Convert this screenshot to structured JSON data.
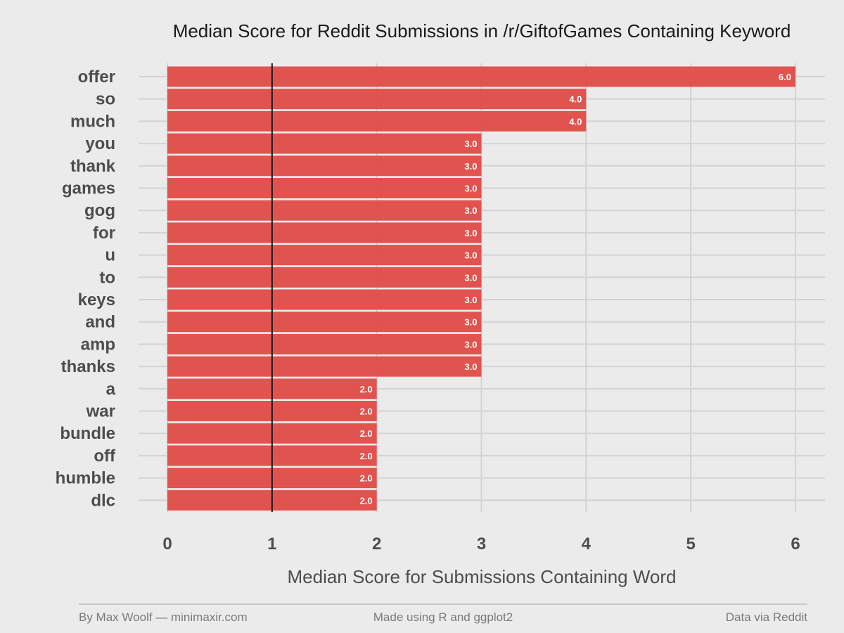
{
  "chart_data": {
    "type": "bar",
    "orientation": "horizontal",
    "title": "Median Score for Reddit Submissions in /r/GiftofGames Containing Keyword",
    "xlabel": "Median Score for Submissions Containing Word",
    "ylabel": "",
    "xlim": [
      0,
      6
    ],
    "xticks": [
      "0",
      "1",
      "2",
      "3",
      "4",
      "5",
      "6"
    ],
    "reference_line": 1,
    "categories": [
      "offer",
      "so",
      "much",
      "you",
      "thank",
      "games",
      "gog",
      "for",
      "u",
      "to",
      "keys",
      "and",
      "amp",
      "thanks",
      "a",
      "war",
      "bundle",
      "off",
      "humble",
      "dlc"
    ],
    "values": [
      6.0,
      4.0,
      4.0,
      3.0,
      3.0,
      3.0,
      3.0,
      3.0,
      3.0,
      3.0,
      3.0,
      3.0,
      3.0,
      3.0,
      2.0,
      2.0,
      2.0,
      2.0,
      2.0,
      2.0
    ],
    "value_labels": [
      "6.0",
      "4.0",
      "4.0",
      "3.0",
      "3.0",
      "3.0",
      "3.0",
      "3.0",
      "3.0",
      "3.0",
      "3.0",
      "3.0",
      "3.0",
      "3.0",
      "2.0",
      "2.0",
      "2.0",
      "2.0",
      "2.0",
      "2.0"
    ],
    "bar_color": "#e04b47",
    "grid": true
  },
  "footer": {
    "left": "By Max Woolf — minimaxir.com",
    "center": "Made using R and ggplot2",
    "right": "Data via Reddit"
  },
  "colors": {
    "background": "#ebebeb",
    "gridline": "#d3d3d3",
    "reference_line": "#1a1a1a",
    "footer_rule": "#b3b3b3"
  }
}
